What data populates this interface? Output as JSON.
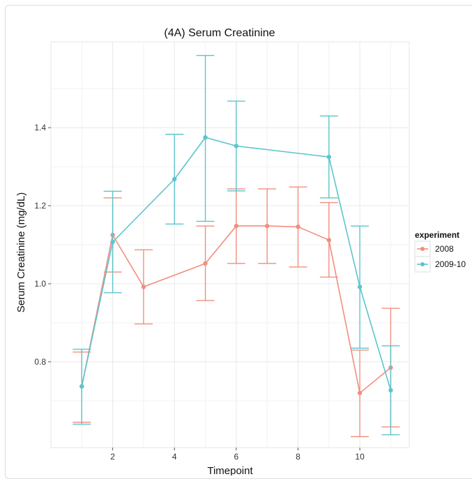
{
  "chart_data": {
    "type": "line",
    "title": "(4A) Serum Creatinine",
    "xlabel": "Timepoint",
    "ylabel": "Serum Creatinine (mg/dL)",
    "xlim": [
      0.0,
      11.6
    ],
    "ylim": [
      0.58,
      1.62
    ],
    "x_ticks": [
      2,
      4,
      6,
      8,
      10
    ],
    "y_ticks": [
      0.8,
      1.0,
      1.2,
      1.4
    ],
    "x_tick_labels": [
      "2",
      "4",
      "6",
      "8",
      "10"
    ],
    "y_tick_labels": [
      "0.8",
      "1.0",
      "1.2",
      "1.4"
    ],
    "grid": true,
    "error_bars": true,
    "legend": {
      "title": "experiment",
      "position": "right"
    },
    "series": [
      {
        "name": "2008",
        "color": "#f28e7f",
        "points": [
          {
            "x": 1,
            "y": 0.737,
            "lo": 0.645,
            "hi": 0.825
          },
          {
            "x": 2,
            "y": 1.125,
            "lo": 1.03,
            "hi": 1.22
          },
          {
            "x": 3,
            "y": 0.992,
            "lo": 0.897,
            "hi": 1.087
          },
          {
            "x": 5,
            "y": 1.052,
            "lo": 0.957,
            "hi": 1.148
          },
          {
            "x": 6,
            "y": 1.148,
            "lo": 1.052,
            "hi": 1.243
          },
          {
            "x": 7,
            "y": 1.148,
            "lo": 1.052,
            "hi": 1.243
          },
          {
            "x": 8,
            "y": 1.146,
            "lo": 1.043,
            "hi": 1.248
          },
          {
            "x": 9,
            "y": 1.112,
            "lo": 1.017,
            "hi": 1.208
          },
          {
            "x": 10,
            "y": 0.72,
            "lo": 0.608,
            "hi": 0.83
          },
          {
            "x": 11,
            "y": 0.785,
            "lo": 0.633,
            "hi": 0.937
          }
        ]
      },
      {
        "name": "2009-10",
        "color": "#5bc5cc",
        "points": [
          {
            "x": 1,
            "y": 0.737,
            "lo": 0.64,
            "hi": 0.832
          },
          {
            "x": 2,
            "y": 1.107,
            "lo": 0.977,
            "hi": 1.237
          },
          {
            "x": 4,
            "y": 1.268,
            "lo": 1.153,
            "hi": 1.383
          },
          {
            "x": 5,
            "y": 1.375,
            "lo": 1.16,
            "hi": 1.585
          },
          {
            "x": 6,
            "y": 1.353,
            "lo": 1.238,
            "hi": 1.468
          },
          {
            "x": 9,
            "y": 1.325,
            "lo": 1.22,
            "hi": 1.43
          },
          {
            "x": 10,
            "y": 0.992,
            "lo": 0.835,
            "hi": 1.148
          },
          {
            "x": 11,
            "y": 0.727,
            "lo": 0.613,
            "hi": 0.841
          }
        ]
      }
    ]
  }
}
